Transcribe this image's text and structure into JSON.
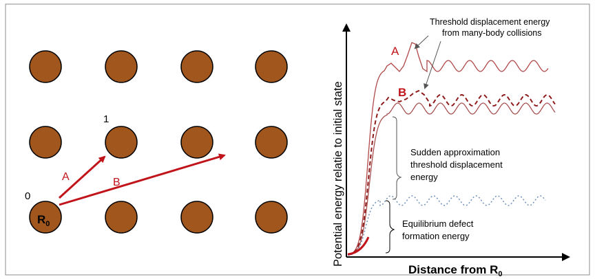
{
  "lattice": {
    "atom_color": "#A0561C",
    "atom_stroke": "#000000",
    "origin_atom_label": "R",
    "origin_atom_subscript": "0",
    "site_labels": {
      "origin": "0",
      "target": "1"
    },
    "jumps": [
      {
        "label": "A",
        "color": "#C0141A"
      },
      {
        "label": "B",
        "color": "#C0141A"
      }
    ]
  },
  "plot": {
    "ylabel": "Potential energy relatie to initial state",
    "xlabel_prefix": "Distance from R",
    "xlabel_subscript": "0",
    "curve_labels": {
      "a": "A",
      "b": "B"
    },
    "annotations": {
      "threshold_many_body": [
        "Threshold displacement energy",
        "from many-body collisions"
      ],
      "sudden_approx": [
        "Sudden approximation",
        "threshold displacement",
        "energy"
      ],
      "equilibrium": [
        "Equilibrium defect",
        "formation energy"
      ]
    },
    "colors": {
      "curve_a": "#B04848",
      "curve_b_dashed": "#8E1A1A",
      "curve_base": "#A85050",
      "curve_equilibrium": "#6F8FB8",
      "label_red": "#C0141A"
    }
  }
}
